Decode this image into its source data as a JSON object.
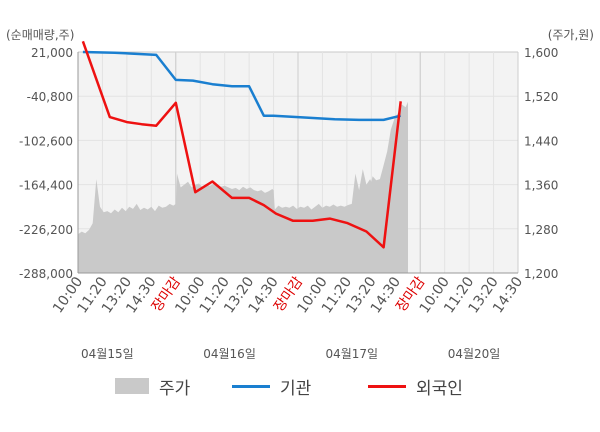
{
  "chart_data": {
    "type": "line",
    "left_axis_label": "(순매매량,주)",
    "right_axis_label": "(주가,원)",
    "left_ticks": [
      "21,000",
      "-40,800",
      "-102,600",
      "-164,400",
      "-226,200",
      "-288,000"
    ],
    "left_tick_values": [
      21000,
      -40800,
      -102600,
      -164400,
      -226200,
      -288000
    ],
    "left_ylim": [
      -288000,
      21000
    ],
    "right_ticks": [
      "1,600",
      "1,520",
      "1,440",
      "1,360",
      "1,280",
      "1,200"
    ],
    "right_tick_values": [
      1600,
      1520,
      1440,
      1360,
      1280,
      1200
    ],
    "right_ylim": [
      1200,
      1600
    ],
    "x_tick_labels": [
      "10:00",
      "11:20",
      "13:20",
      "14:30",
      "장마감",
      "10:00",
      "11:20",
      "13:20",
      "14:30",
      "장마감",
      "10:00",
      "11:20",
      "13:20",
      "14:30",
      "장마감",
      "10:00",
      "11:20",
      "13:20",
      "14:30"
    ],
    "x_tick_highlight": [
      false,
      false,
      false,
      false,
      true,
      false,
      false,
      false,
      false,
      true,
      false,
      false,
      false,
      false,
      true,
      false,
      false,
      false,
      false
    ],
    "day_labels": [
      "04월15일",
      "04월16일",
      "04월17일",
      "04월20일"
    ],
    "grid": true,
    "legend_position": "bottom",
    "colors": {
      "price": "#c9c9c9",
      "institution": "#1a7fd0",
      "foreign": "#ee1111",
      "highlight_tick": "#dd0000"
    },
    "series": [
      {
        "name": "주가",
        "axis": "right",
        "kind": "area",
        "x": [
          0,
          0.15,
          0.3,
          0.45,
          0.6,
          0.75,
          0.9,
          1.05,
          1.2,
          1.35,
          1.5,
          1.65,
          1.8,
          1.95,
          2.1,
          2.25,
          2.4,
          2.55,
          2.7,
          2.85,
          3.0,
          3.15,
          3.3,
          3.45,
          3.6,
          3.75,
          3.9,
          4.0,
          4.05,
          4.2,
          4.35,
          4.5,
          4.65,
          4.8,
          4.95,
          5.1,
          5.25,
          5.4,
          5.55,
          5.7,
          5.85,
          6.0,
          6.15,
          6.3,
          6.45,
          6.6,
          6.75,
          6.9,
          7.05,
          7.2,
          7.35,
          7.5,
          7.65,
          7.8,
          7.95,
          8.0,
          8.05,
          8.2,
          8.35,
          8.5,
          8.65,
          8.8,
          8.95,
          9.1,
          9.25,
          9.4,
          9.55,
          9.7,
          9.85,
          10.0,
          10.15,
          10.3,
          10.45,
          10.6,
          10.75,
          10.9,
          11.05,
          11.2,
          11.35,
          11.5,
          11.65,
          11.8,
          11.95,
          12.0,
          12.05,
          12.2,
          12.35,
          12.5,
          12.65,
          12.8,
          12.95,
          13.1,
          13.25,
          13.4,
          13.5
        ],
        "values": [
          1270,
          1275,
          1272,
          1278,
          1290,
          1370,
          1320,
          1310,
          1312,
          1308,
          1315,
          1310,
          1318,
          1312,
          1320,
          1316,
          1325,
          1314,
          1318,
          1315,
          1320,
          1312,
          1322,
          1318,
          1320,
          1325,
          1322,
          1325,
          1380,
          1355,
          1360,
          1365,
          1355,
          1360,
          1362,
          1355,
          1360,
          1358,
          1362,
          1360,
          1356,
          1358,
          1355,
          1352,
          1354,
          1350,
          1356,
          1352,
          1355,
          1350,
          1348,
          1350,
          1345,
          1348,
          1352,
          1350,
          1315,
          1322,
          1318,
          1320,
          1318,
          1322,
          1316,
          1320,
          1318,
          1322,
          1315,
          1320,
          1325,
          1318,
          1322,
          1320,
          1324,
          1320,
          1322,
          1320,
          1323,
          1325,
          1380,
          1350,
          1388,
          1360,
          1370,
          1365,
          1375,
          1368,
          1370,
          1395,
          1420,
          1460,
          1480,
          1490,
          1505,
          1500,
          1510
        ]
      },
      {
        "name": "기관",
        "axis": "left",
        "kind": "line",
        "x": [
          0.2,
          1.5,
          2.6,
          3.2,
          4.0,
          4.7,
          5.5,
          6.3,
          7.0,
          7.6,
          8.0,
          9.0,
          10.5,
          11.5,
          12.5,
          13.2
        ],
        "values": [
          21000,
          20000,
          18000,
          17000,
          -18000,
          -19000,
          -24000,
          -27000,
          -27000,
          -68000,
          -68000,
          -70000,
          -73000,
          -74000,
          -74000,
          -68000
        ]
      },
      {
        "name": "외국인",
        "axis": "left",
        "kind": "line",
        "x": [
          0.2,
          1.3,
          2.0,
          2.6,
          3.2,
          4.0,
          4.8,
          5.5,
          6.3,
          7.0,
          7.6,
          8.1,
          8.8,
          9.6,
          10.3,
          11.0,
          11.8,
          12.5,
          13.2
        ],
        "values": [
          36000,
          -70000,
          -77000,
          -80000,
          -82000,
          -50000,
          -175000,
          -160000,
          -183000,
          -183000,
          -193000,
          -205000,
          -215000,
          -215000,
          -212000,
          -218000,
          -230000,
          -252000,
          -48000
        ]
      }
    ],
    "legend": [
      "주가",
      "기관",
      "외국인"
    ]
  }
}
